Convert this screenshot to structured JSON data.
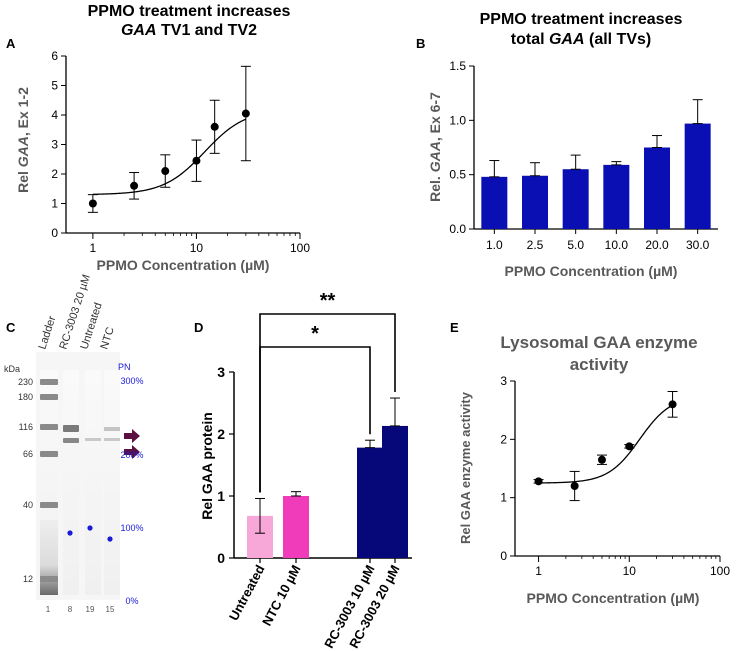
{
  "panels": {
    "a": {
      "letter": "A"
    },
    "b": {
      "letter": "B"
    },
    "c": {
      "letter": "C"
    },
    "d": {
      "letter": "D"
    },
    "e": {
      "letter": "E"
    }
  },
  "colors": {
    "axis": "#000000",
    "title_gray": "#595959",
    "bar_blue": "#0a0fb3",
    "bar_light_pink": "#f7a8d8",
    "bar_pink": "#f03cbb",
    "bar_navy": "#06087a",
    "gel_blue": "#1a1ad6",
    "arrow": "#5a1040"
  },
  "chart_data": [
    {
      "id": "A",
      "type": "scatter",
      "title_line1": "PPMO treatment increases",
      "title_line2_italic": "GAA",
      "title_line2_rest": " TV1 and TV2",
      "xlabel": "PPMO Concentration (µM)",
      "ylabel_prefix": "Rel ",
      "ylabel_italic": "GAA",
      "ylabel_suffix": ", Ex 1-2",
      "xscale": "log",
      "xlim": [
        0.55,
        100
      ],
      "ylim": [
        0,
        6
      ],
      "xticks": [
        1,
        10,
        100
      ],
      "xtick_labels": [
        "1",
        "10",
        "100"
      ],
      "yticks": [
        0,
        1,
        2,
        3,
        4,
        5,
        6
      ],
      "x": [
        1,
        2.5,
        5,
        10,
        15,
        30
      ],
      "y": [
        1.0,
        1.6,
        2.1,
        2.45,
        3.6,
        4.05
      ],
      "err": [
        0.3,
        0.45,
        0.55,
        0.7,
        0.9,
        1.6
      ],
      "fit": {
        "bottom": 1.3,
        "top": 4.2,
        "ec50": 12,
        "hill": 2.2
      }
    },
    {
      "id": "B",
      "type": "bar",
      "title_line1": "PPMO treatment increases",
      "title_line2_pre": "total ",
      "title_line2_italic": "GAA",
      "title_line2_rest": " (all TVs)",
      "xlabel": "PPMO Concentration (µM)",
      "ylabel_prefix": "Rel. ",
      "ylabel_italic": "GAA",
      "ylabel_suffix": ", Ex 6-7",
      "categories": [
        "1.0",
        "2.5",
        "5.0",
        "10.0",
        "20.0",
        "30.0"
      ],
      "values": [
        0.48,
        0.49,
        0.55,
        0.59,
        0.75,
        0.97
      ],
      "err": [
        0.15,
        0.12,
        0.13,
        0.03,
        0.11,
        0.22
      ],
      "ylim": [
        0,
        1.5
      ],
      "yticks": [
        0.0,
        0.5,
        1.0,
        1.5
      ],
      "ytick_labels": [
        "0.0",
        "0.5",
        "1.0",
        "1.5"
      ]
    },
    {
      "id": "C",
      "type": "gel",
      "kda_label": "kDa",
      "lane_headers": [
        "Ladder",
        "RC-3003 20 µM",
        "Untreated",
        "NTC"
      ],
      "lane_numbers": [
        "1",
        "8",
        "19",
        "15"
      ],
      "mw_markers": [
        "230",
        "180",
        "116",
        "66",
        "40",
        "12"
      ],
      "pn_header": "PN",
      "pn_labels": [
        "300%",
        "200%",
        "100%",
        "0%"
      ]
    },
    {
      "id": "D",
      "type": "bar",
      "ylabel": "Rel GAA protein",
      "categories": [
        "Untreated",
        "NTC 10 µM",
        "RC-3003  10 µM",
        "RC-3003  20 µM"
      ],
      "values": [
        0.68,
        1.0,
        1.78,
        2.13
      ],
      "err": [
        0.28,
        0.07,
        0.12,
        0.45
      ],
      "ylim": [
        0,
        3
      ],
      "yticks": [
        0,
        1,
        2,
        3
      ],
      "significance": [
        {
          "label": "*",
          "from": "Untreated",
          "to": "RC-3003  10 µM"
        },
        {
          "label": "**",
          "from": "Untreated",
          "to": "RC-3003  20 µM"
        }
      ]
    },
    {
      "id": "E",
      "type": "scatter",
      "title_line1": "Lysosomal GAA enzyme",
      "title_line2": "activity",
      "xlabel": "PPMO Concentration (µM)",
      "ylabel": "Rel GAA enzyme activity",
      "xscale": "log",
      "xlim": [
        0.55,
        100
      ],
      "ylim": [
        0,
        3
      ],
      "xticks": [
        1,
        10,
        100
      ],
      "xtick_labels": [
        "1",
        "10",
        "100"
      ],
      "yticks": [
        0,
        1,
        2,
        3
      ],
      "x": [
        1,
        2.5,
        5,
        10,
        30
      ],
      "y": [
        1.28,
        1.2,
        1.65,
        1.88,
        2.6
      ],
      "err": [
        0.03,
        0.25,
        0.08,
        0.03,
        0.22
      ],
      "fit": {
        "bottom": 1.25,
        "top": 2.75,
        "ec50": 13,
        "hill": 2.5
      }
    }
  ]
}
